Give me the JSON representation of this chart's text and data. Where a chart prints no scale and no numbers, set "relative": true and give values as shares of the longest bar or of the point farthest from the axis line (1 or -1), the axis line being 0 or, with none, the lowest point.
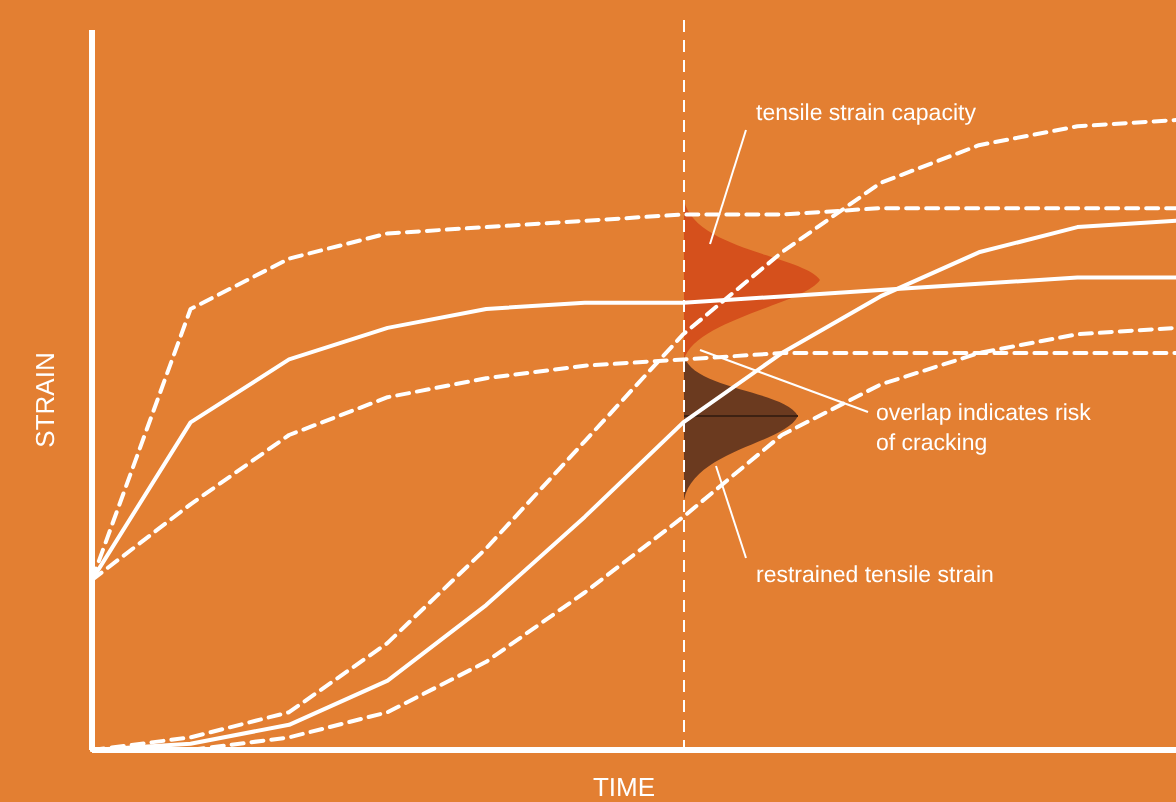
{
  "chart_data": {
    "type": "line",
    "relative": true,
    "xlabel": "TIME",
    "ylabel": "STRAIN",
    "categories": [
      null,
      null,
      null,
      null,
      null,
      null,
      null,
      null,
      null,
      null,
      null,
      null
    ],
    "series": [
      {
        "color": "#ffffff",
        "line_style": "dashed",
        "values": [
          0.27,
          0.7,
          0.78,
          0.82,
          0.83,
          0.84,
          0.85,
          0.85,
          0.86,
          0.86,
          0.86,
          0.86
        ]
      },
      {
        "color": "#ffffff",
        "line_style": "solid",
        "values": [
          0.27,
          0.52,
          0.62,
          0.67,
          0.7,
          0.71,
          0.71,
          0.72,
          0.73,
          0.74,
          0.75,
          0.75
        ]
      },
      {
        "color": "#ffffff",
        "line_style": "dashed",
        "values": [
          0.27,
          0.39,
          0.5,
          0.56,
          0.59,
          0.61,
          0.62,
          0.63,
          0.63,
          0.63,
          0.63,
          0.63
        ]
      },
      {
        "color": "#ffffff",
        "line_style": "dashed",
        "values": [
          0,
          0.02,
          0.06,
          0.17,
          0.32,
          0.49,
          0.66,
          0.79,
          0.9,
          0.96,
          0.99,
          1
        ]
      },
      {
        "color": "#ffffff",
        "line_style": "solid",
        "values": [
          0,
          0.01,
          0.04,
          0.11,
          0.23,
          0.37,
          0.52,
          0.63,
          0.72,
          0.79,
          0.83,
          0.84
        ]
      },
      {
        "color": "#ffffff",
        "line_style": "dashed",
        "values": [
          0,
          0,
          0.02,
          0.06,
          0.14,
          0.25,
          0.37,
          0.5,
          0.58,
          0.63,
          0.66,
          0.67
        ]
      }
    ],
    "annotations": [
      "tensile strain capacity",
      "overlap indicates risk of cracking",
      "restrained tensile strain"
    ]
  }
}
